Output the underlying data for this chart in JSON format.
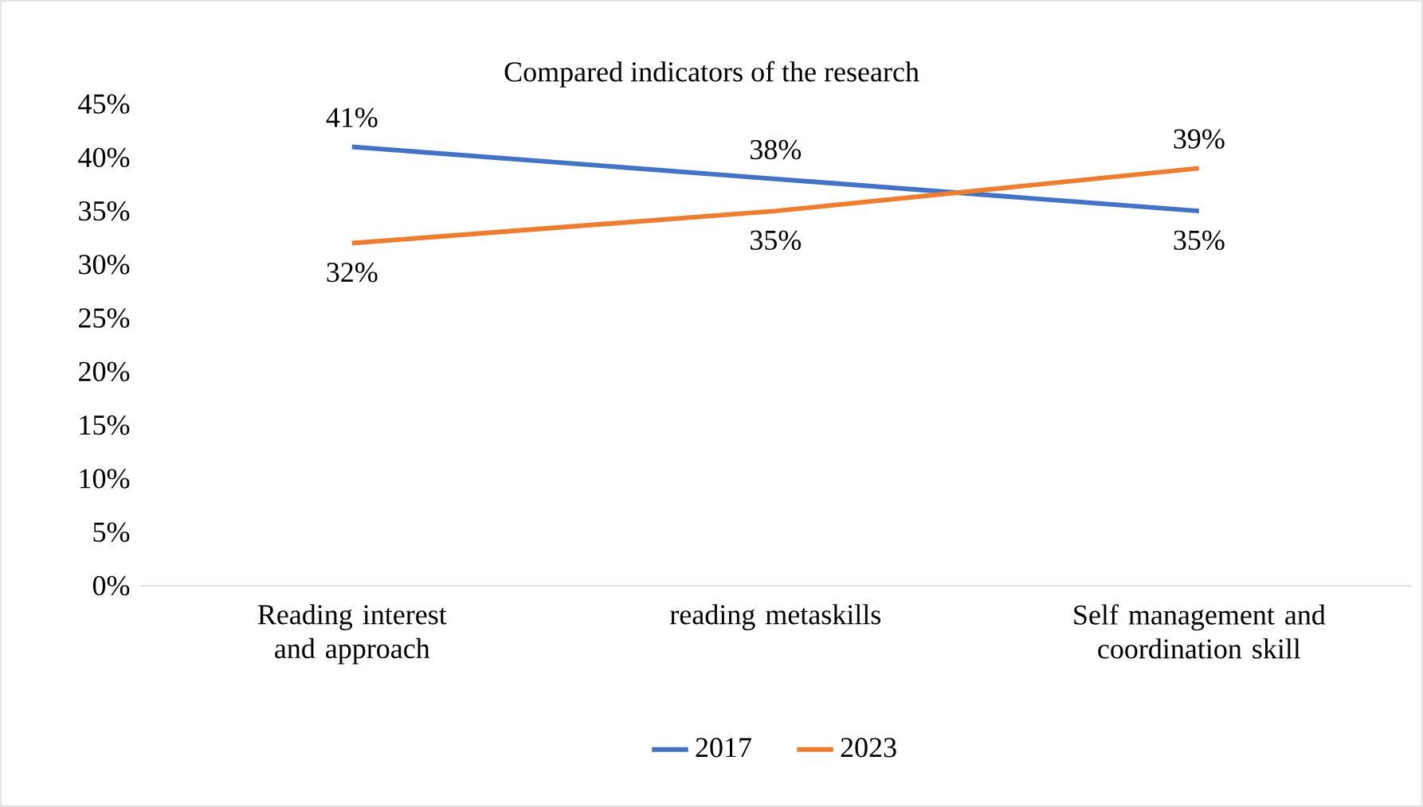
{
  "chart_data": {
    "type": "line",
    "title": "Compared indicators of the research",
    "categories": [
      "Reading interest and approach",
      "reading metaskills",
      "Self management and coordination skill"
    ],
    "series": [
      {
        "name": "2017",
        "color": "#4472c4",
        "values": [
          41,
          38,
          35
        ],
        "value_labels": [
          "41%",
          "38%",
          "35%"
        ]
      },
      {
        "name": "2023",
        "color": "#ed7d31",
        "values": [
          32,
          35,
          39
        ],
        "value_labels": [
          "32%",
          "35%",
          "39%"
        ]
      }
    ],
    "ylim": [
      0,
      45
    ],
    "yticks": [
      {
        "value": 0,
        "label": "0%"
      },
      {
        "value": 5,
        "label": "5%"
      },
      {
        "value": 10,
        "label": "10%"
      },
      {
        "value": 15,
        "label": "15%"
      },
      {
        "value": 20,
        "label": "20%"
      },
      {
        "value": 25,
        "label": "25%"
      },
      {
        "value": 30,
        "label": "30%"
      },
      {
        "value": 35,
        "label": "35%"
      },
      {
        "value": 40,
        "label": "40%"
      },
      {
        "value": 45,
        "label": "45%"
      }
    ],
    "legend": "bottom",
    "marker": "none",
    "line_style": "solid",
    "grid": false
  }
}
